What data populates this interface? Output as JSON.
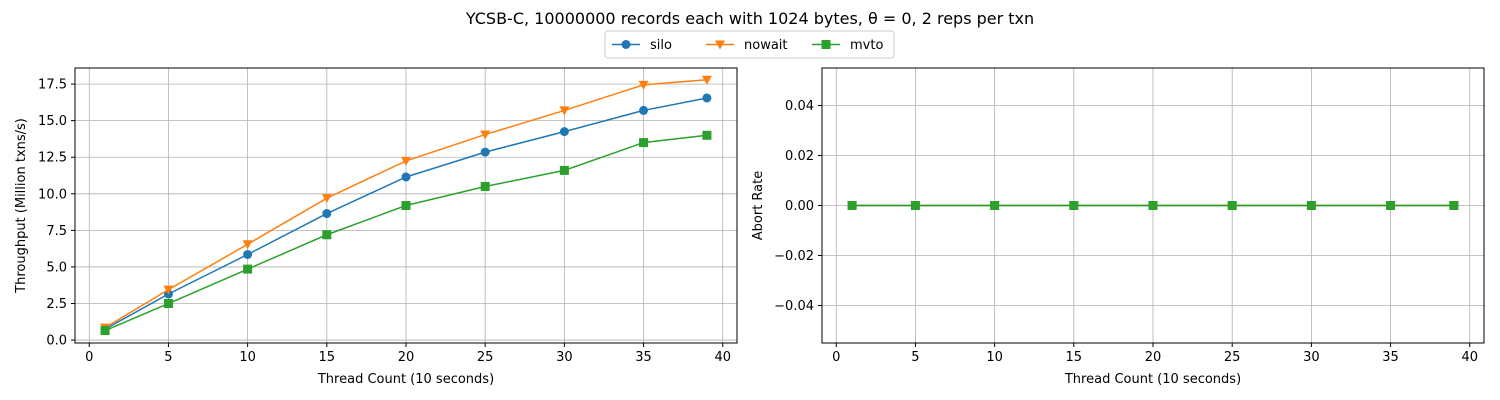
{
  "figure": {
    "title": "YCSB-C, 10000000 records each with 1024 bytes, θ = 0, 2 reps per txn"
  },
  "legend": {
    "placement": "top-center",
    "entries": [
      {
        "name": "silo",
        "color": "#1f77b4",
        "marker": "circle"
      },
      {
        "name": "nowait",
        "color": "#ff7f0e",
        "marker": "triangle-down"
      },
      {
        "name": "mvto",
        "color": "#2ca02c",
        "marker": "square"
      }
    ]
  },
  "chart_data": [
    {
      "type": "line",
      "xlabel": "Thread Count (10 seconds)",
      "ylabel": "Throughput (Million txns/s)",
      "xlim": [
        -0.9,
        40.9
      ],
      "ylim": [
        -0.2,
        18.6
      ],
      "xticks": [
        0,
        5,
        10,
        15,
        20,
        25,
        30,
        35,
        40
      ],
      "xtick_labels": [
        "0",
        "5",
        "10",
        "15",
        "20",
        "25",
        "30",
        "35",
        "40"
      ],
      "yticks": [
        0,
        2.5,
        5,
        7.5,
        10,
        12.5,
        15,
        17.5
      ],
      "ytick_labels": [
        "0.0",
        "2.5",
        "5.0",
        "7.5",
        "10.0",
        "12.5",
        "15.0",
        "17.5"
      ],
      "grid": true,
      "x": [
        1,
        5,
        10,
        15,
        20,
        25,
        30,
        35,
        39
      ],
      "series": [
        {
          "name": "silo",
          "color": "#1f77b4",
          "marker": "circle",
          "values": [
            0.75,
            3.15,
            5.85,
            8.65,
            11.15,
            12.85,
            14.25,
            15.7,
            16.55
          ]
        },
        {
          "name": "nowait",
          "color": "#ff7f0e",
          "marker": "triangle-down",
          "values": [
            0.85,
            3.45,
            6.55,
            9.7,
            12.25,
            14.05,
            15.7,
            17.45,
            17.8
          ]
        },
        {
          "name": "mvto",
          "color": "#2ca02c",
          "marker": "square",
          "values": [
            0.65,
            2.5,
            4.85,
            7.2,
            9.2,
            10.5,
            11.6,
            13.5,
            14.0
          ]
        }
      ]
    },
    {
      "type": "line",
      "xlabel": "Thread Count (10 seconds)",
      "ylabel": "Abort Rate",
      "xlim": [
        -0.9,
        40.9
      ],
      "ylim": [
        -0.055,
        0.055
      ],
      "xticks": [
        0,
        5,
        10,
        15,
        20,
        25,
        30,
        35,
        40
      ],
      "xtick_labels": [
        "0",
        "5",
        "10",
        "15",
        "20",
        "25",
        "30",
        "35",
        "40"
      ],
      "yticks": [
        -0.04,
        -0.02,
        0,
        0.02,
        0.04
      ],
      "ytick_labels": [
        "−0.04",
        "−0.02",
        "0.00",
        "0.02",
        "0.04"
      ],
      "grid": true,
      "x": [
        1,
        5,
        10,
        15,
        20,
        25,
        30,
        35,
        39
      ],
      "series": [
        {
          "name": "silo",
          "color": "#1f77b4",
          "marker": "circle",
          "values": [
            0,
            0,
            0,
            0,
            0,
            0,
            0,
            0,
            0
          ]
        },
        {
          "name": "nowait",
          "color": "#ff7f0e",
          "marker": "triangle-down",
          "values": [
            0,
            0,
            0,
            0,
            0,
            0,
            0,
            0,
            0
          ]
        },
        {
          "name": "mvto",
          "color": "#2ca02c",
          "marker": "square",
          "values": [
            0,
            0,
            0,
            0,
            0,
            0,
            0,
            0,
            0
          ]
        }
      ]
    }
  ]
}
